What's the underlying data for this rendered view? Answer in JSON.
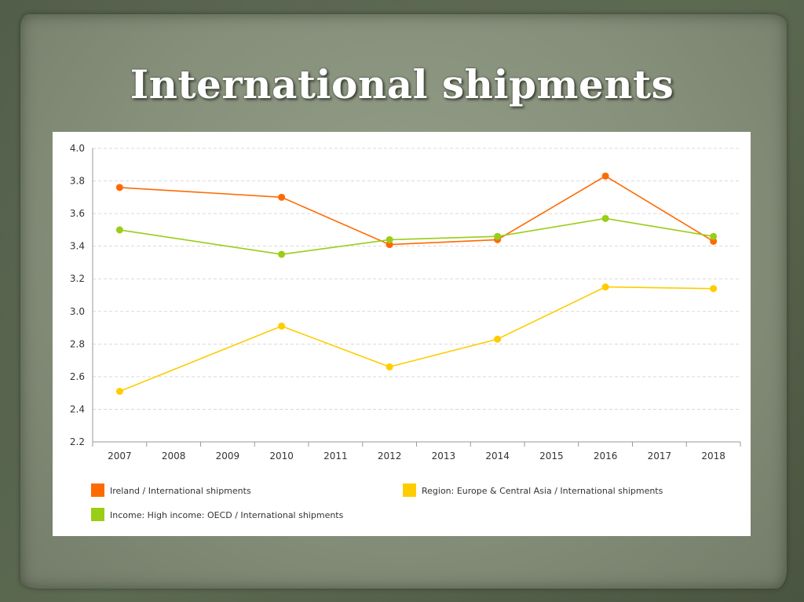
{
  "slide": {
    "title": "International shipments"
  },
  "chart_data": {
    "type": "line",
    "title": "",
    "xlabel": "",
    "ylabel": "",
    "x": [
      "2007",
      "2008",
      "2009",
      "2010",
      "2011",
      "2012",
      "2013",
      "2014",
      "2015",
      "2016",
      "2017",
      "2018"
    ],
    "ylim": [
      2.2,
      4.0
    ],
    "yticks": [
      "2.2",
      "2.4",
      "2.6",
      "2.8",
      "3.0",
      "3.2",
      "3.4",
      "3.6",
      "3.8",
      "4.0"
    ],
    "grid": true,
    "legend_position": "bottom",
    "series": [
      {
        "name": "Ireland / International shipments",
        "color": "#ff6a00",
        "points": [
          [
            2007,
            3.76
          ],
          [
            2010,
            3.7
          ],
          [
            2012,
            3.41
          ],
          [
            2014,
            3.44
          ],
          [
            2016,
            3.83
          ],
          [
            2018,
            3.43
          ]
        ]
      },
      {
        "name": "Income: High income: OECD / International shipments",
        "color": "#9acd16",
        "points": [
          [
            2007,
            3.5
          ],
          [
            2010,
            3.35
          ],
          [
            2012,
            3.44
          ],
          [
            2014,
            3.46
          ],
          [
            2016,
            3.57
          ],
          [
            2018,
            3.46
          ]
        ]
      },
      {
        "name": "Region: Europe & Central Asia / International shipments",
        "color": "#ffcc00",
        "points": [
          [
            2007,
            2.51
          ],
          [
            2010,
            2.91
          ],
          [
            2012,
            2.66
          ],
          [
            2014,
            2.83
          ],
          [
            2016,
            3.15
          ],
          [
            2018,
            3.14
          ]
        ]
      }
    ]
  }
}
